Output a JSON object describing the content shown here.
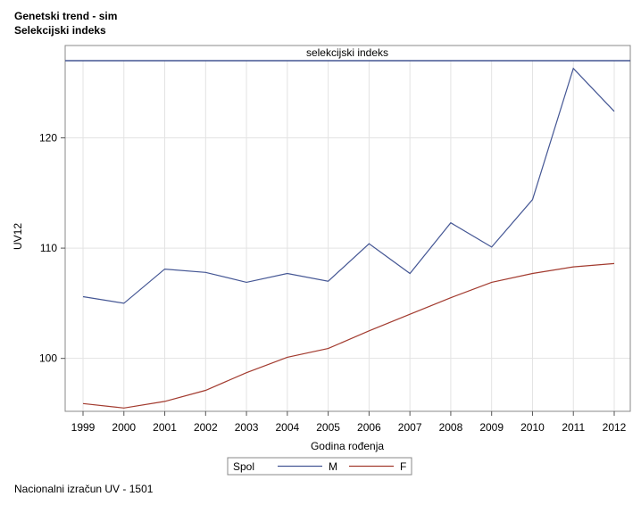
{
  "titles": {
    "line1": "Genetski trend - sim",
    "line2": "Selekcijski indeks"
  },
  "footnote": "Nacionalni izračun UV - 1501",
  "chart_data": {
    "type": "line",
    "panel_label": "selekcijski indeks",
    "xlabel": "Godina rođenja",
    "ylabel": "UV12",
    "x": [
      1999,
      2000,
      2001,
      2002,
      2003,
      2004,
      2005,
      2006,
      2007,
      2008,
      2009,
      2010,
      2011,
      2012
    ],
    "xlim": [
      1999,
      2012
    ],
    "ylim": [
      95.2,
      127
    ],
    "yticks": [
      100,
      110,
      120
    ],
    "grid": true,
    "legend": {
      "title": "Spol",
      "position": "bottom-center"
    },
    "series": [
      {
        "name": "M",
        "color": "#445694",
        "values": [
          105.6,
          105.0,
          108.1,
          107.8,
          106.9,
          107.7,
          107.0,
          110.4,
          107.7,
          112.3,
          110.1,
          114.4,
          126.3,
          122.4
        ]
      },
      {
        "name": "F",
        "color": "#a23a2e",
        "values": [
          95.9,
          95.5,
          96.1,
          97.1,
          98.7,
          100.1,
          100.9,
          102.5,
          104.0,
          105.5,
          106.9,
          107.7,
          108.3,
          108.6
        ]
      }
    ]
  }
}
